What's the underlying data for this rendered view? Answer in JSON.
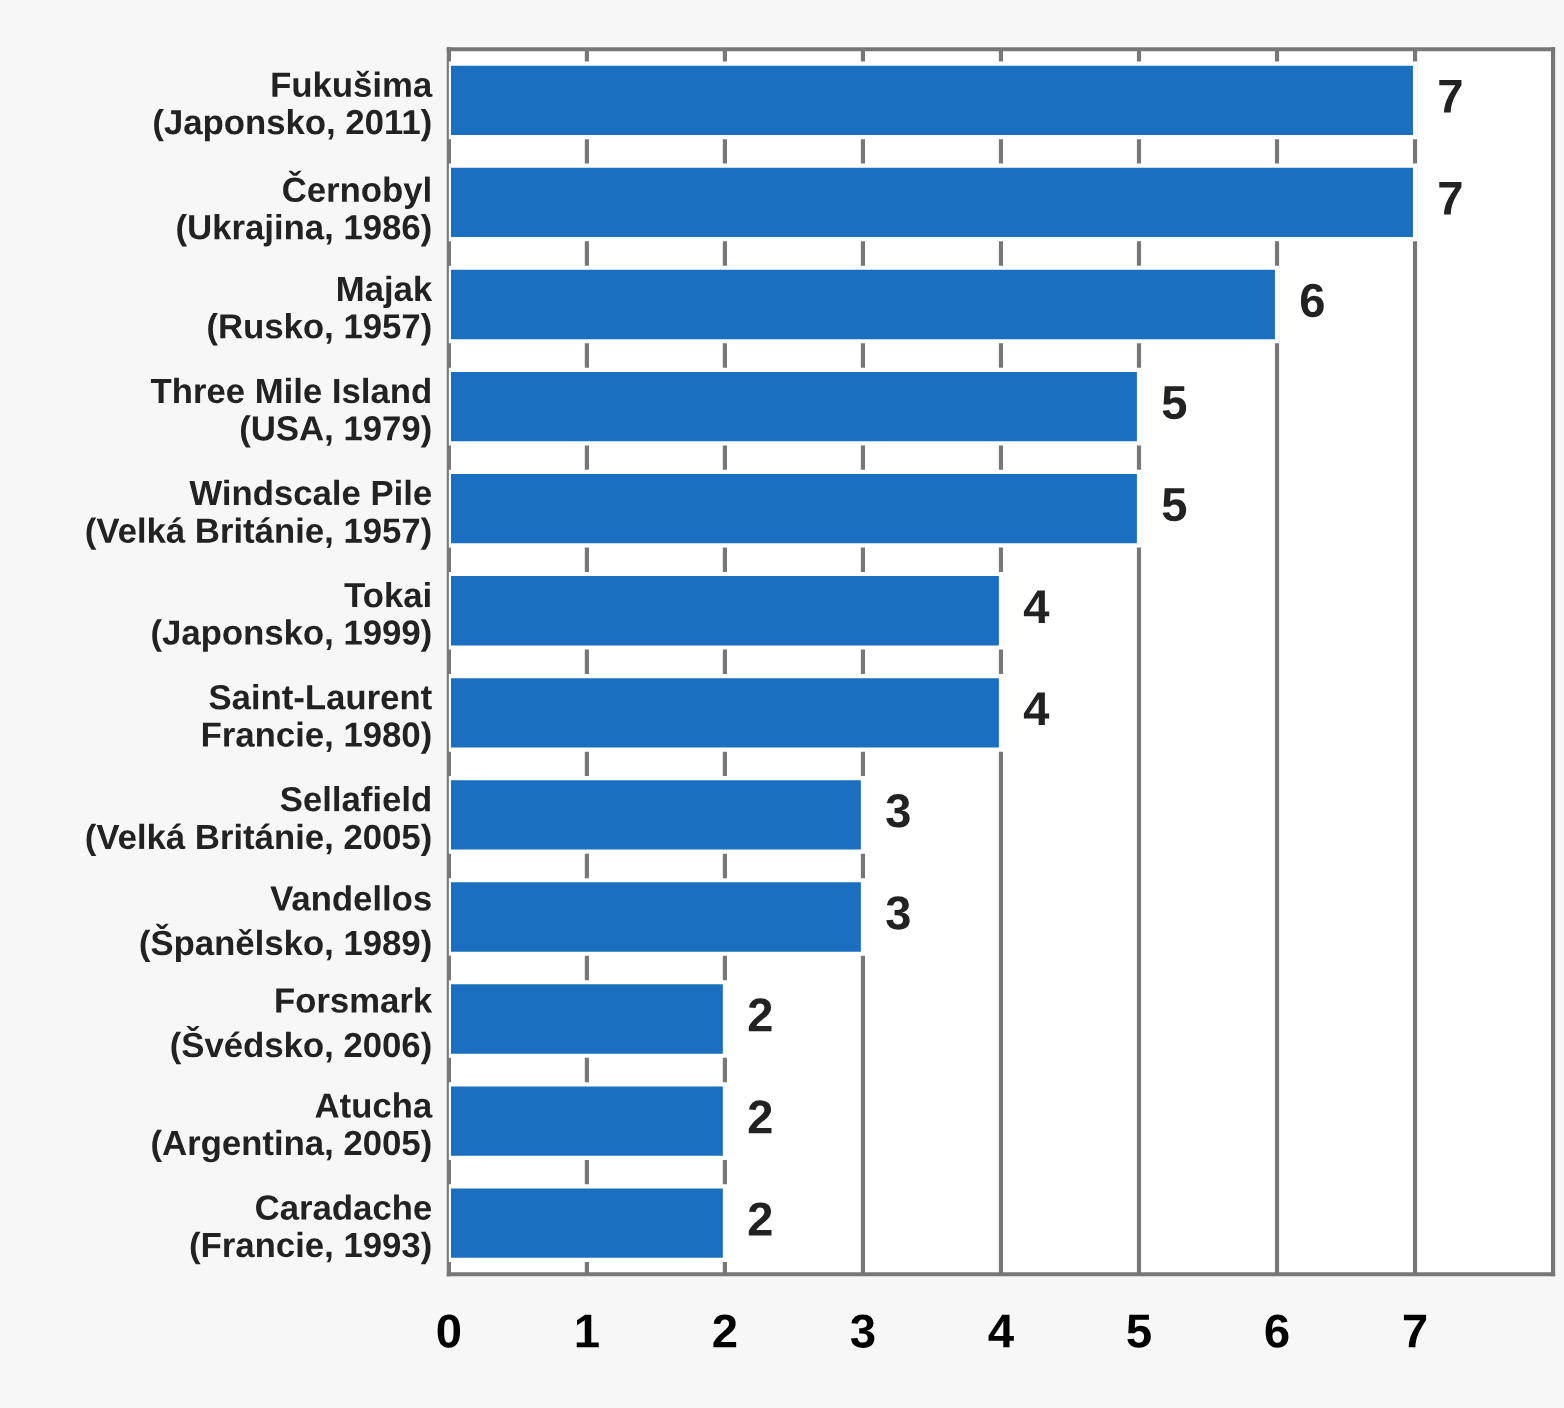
{
  "chart_data": {
    "type": "bar",
    "orientation": "horizontal",
    "categories": [
      "Fukušima\n(Japonsko, 2011)",
      "Černobyl\n(Ukrajina, 1986)",
      "Majak\n(Rusko, 1957)",
      "Three Mile Island\n(USA, 1979)",
      "Windscale Pile\n(Velká Británie, 1957)",
      "Tokai\n(Japonsko, 1999)",
      "Saint-Laurent\nFrancie, 1980)",
      "Sellafield\n(Velká Británie, 2005)",
      "Vandellos\n(Španělsko, 1989)",
      "Forsmark\n(Švédsko, 2006)",
      "Atucha\n(Argentina, 2005)",
      "Caradache\n(Francie, 1993)"
    ],
    "values": [
      7,
      7,
      6,
      5,
      5,
      4,
      4,
      3,
      3,
      2,
      2,
      2
    ],
    "color": "#1a6fc0",
    "xlim": [
      0,
      8
    ],
    "xticks": [
      0,
      1,
      2,
      3,
      4,
      5,
      6,
      7
    ],
    "grid": "x",
    "data_labels": true
  }
}
